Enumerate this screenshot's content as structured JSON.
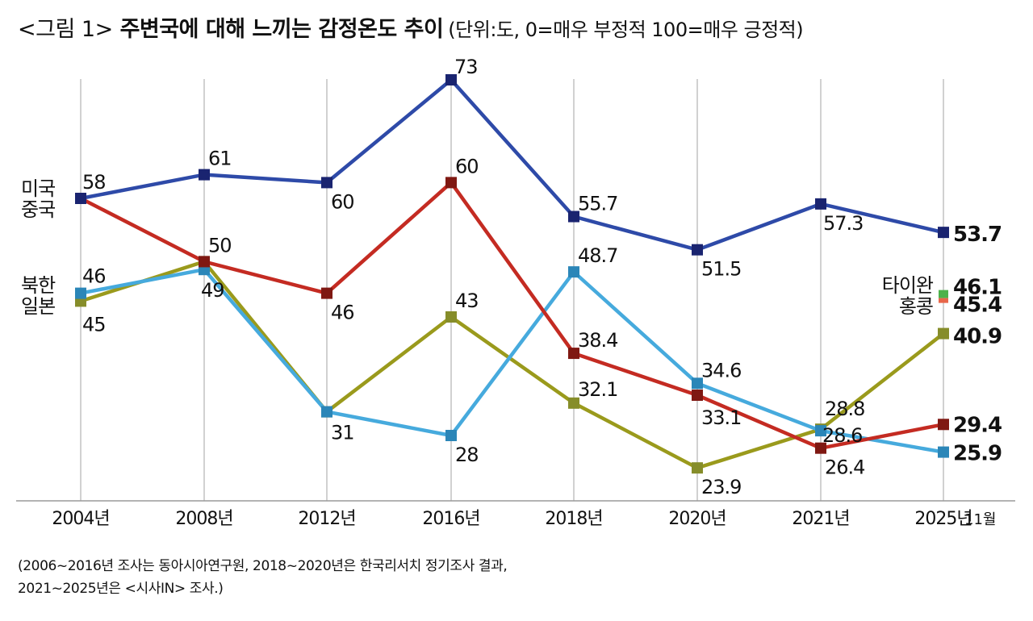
{
  "title": {
    "prefix": "<그림 1>",
    "main": "주변국에 대해 느끼는 감정온도 추이",
    "unit": "(단위:도, 0=매우 부정적 100=매우 긍정적)"
  },
  "footnote": {
    "line1": "(2006~2016년 조사는 동아시아연구원, 2018~2020년은 한국리서치 정기조사 결과,",
    "line2": "2021~2025년은 <시사IN> 조사.)"
  },
  "side_labels": {
    "left_top": [
      "미국",
      "중국"
    ],
    "left_bottom": [
      "북한",
      "일본"
    ],
    "right_mid": [
      "타이완",
      "홍콩"
    ]
  },
  "chart_data": {
    "type": "line",
    "title": "<그림 1> 주변국에 대해 느끼는 감정온도 추이",
    "subtitle": "(단위:도, 0=매우 부정적 100=매우 긍정적)",
    "xlabel": "",
    "ylabel": "",
    "categories": [
      "2004년",
      "2008년",
      "2012년",
      "2016년",
      "2018년",
      "2020년",
      "2021년",
      "2025년"
    ],
    "last_category_suffix": "11월",
    "ylim": [
      19.7,
      73
    ],
    "grid": "vertical",
    "series": [
      {
        "name": "미국",
        "color": "#2e4aa8",
        "marker_color": "#1a2470",
        "values": [
          58,
          61,
          60,
          73,
          55.7,
          51.5,
          57.3,
          53.7
        ],
        "labels": [
          "58",
          "61",
          "60",
          "73",
          "55.7",
          "51.5",
          "57.3",
          "53.7"
        ]
      },
      {
        "name": "중국",
        "color": "#c42b22",
        "marker_color": "#7f1812",
        "values": [
          58,
          50,
          46,
          60,
          38.4,
          33.1,
          26.4,
          29.4
        ],
        "labels": [
          "",
          "50",
          "46",
          "60",
          "38.4",
          "33.1",
          "26.4",
          "29.4"
        ]
      },
      {
        "name": "북한",
        "color": "#9a9a1c",
        "marker_color": "#868d2a",
        "values": [
          45,
          50,
          31,
          43,
          32.1,
          23.9,
          28.8,
          40.9
        ],
        "labels": [
          "45",
          "",
          "",
          "43",
          "32.1",
          "23.9",
          "28.8",
          "40.9"
        ]
      },
      {
        "name": "일본",
        "color": "#46aadd",
        "marker_color": "#2b86b8",
        "values": [
          46,
          49,
          31,
          28,
          48.7,
          34.6,
          28.6,
          25.9
        ],
        "labels": [
          "46",
          "49",
          "31",
          "28",
          "48.7",
          "34.6",
          "28.6",
          "25.9"
        ]
      },
      {
        "name": "타이완",
        "color": "#4db24a",
        "marker_color": "#4db24a",
        "values": [
          null,
          null,
          null,
          null,
          null,
          null,
          null,
          46.1
        ],
        "labels": [
          "",
          "",
          "",
          "",
          "",
          "",
          "",
          "46.1"
        ]
      },
      {
        "name": "홍콩",
        "color": "#e8664a",
        "marker_color": "#e8664a",
        "values": [
          null,
          null,
          null,
          null,
          null,
          null,
          null,
          45.4
        ],
        "labels": [
          "",
          "",
          "",
          "",
          "",
          "",
          "",
          "45.4"
        ]
      }
    ]
  }
}
